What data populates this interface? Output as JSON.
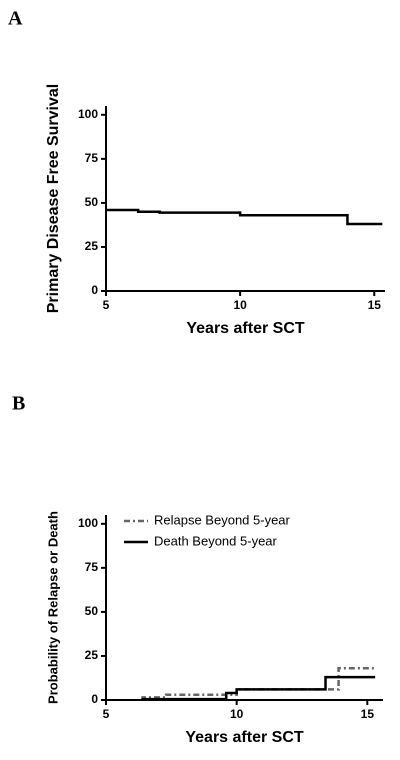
{
  "chart_data": [
    {
      "type": "line",
      "panel_label": "A",
      "x_label": "Years after SCT",
      "y_label": "Primary Disease Free Survival",
      "xlim": [
        5,
        15.4
      ],
      "xticks": [
        5,
        10,
        15
      ],
      "ylim": [
        0,
        105
      ],
      "yticks": [
        0,
        25,
        50,
        75,
        100
      ],
      "series": [
        {
          "name": null,
          "color": "#000000",
          "dash": "solid",
          "x": [
            5,
            6.2,
            6.2,
            7,
            7,
            10,
            10,
            14,
            14,
            15.3
          ],
          "values": [
            46,
            46,
            45,
            45,
            44.5,
            44.5,
            43,
            43,
            38,
            38
          ]
        }
      ]
    },
    {
      "type": "line",
      "panel_label": "B",
      "x_label": "Years after SCT",
      "y_label": "Probability of Relapse or Death",
      "xlim": [
        5,
        15.6
      ],
      "xticks": [
        5,
        10,
        15
      ],
      "ylim": [
        0,
        105
      ],
      "yticks": [
        0,
        25,
        50,
        75,
        100
      ],
      "legend": "upper left",
      "series": [
        {
          "name": "Relapse Beyond 5-year",
          "color": "#666666",
          "dash": "dashdot",
          "x": [
            6.4,
            6.4,
            7.3,
            7.3,
            10,
            10,
            13.9,
            13.9,
            15.3
          ],
          "values": [
            0,
            1.5,
            1.5,
            3,
            3,
            6,
            6,
            18,
            18
          ]
        },
        {
          "name": "Death Beyond 5-year",
          "color": "#000000",
          "dash": "solid",
          "x": [
            6.4,
            6.4,
            9.6,
            9.6,
            10,
            10,
            13.4,
            13.4,
            15.3
          ],
          "values": [
            0,
            0.5,
            0.5,
            4,
            4,
            6,
            6,
            13,
            13
          ]
        }
      ]
    }
  ]
}
